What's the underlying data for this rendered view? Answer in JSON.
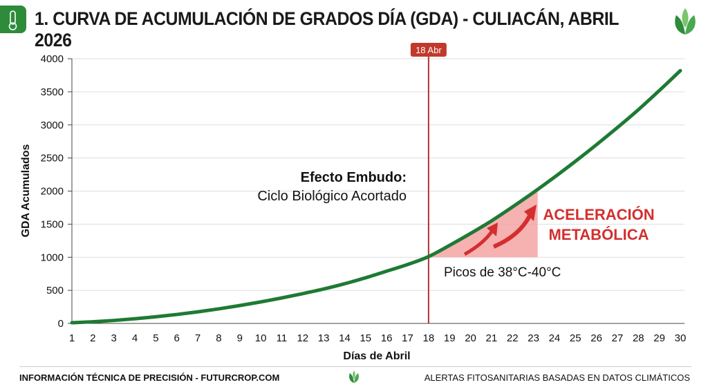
{
  "header": {
    "title": "1. CURVA DE ACUMULACIÓN DE GRADOS DÍA (GDA) - CULIACÁN, ABRIL 2026",
    "icon": "thermometer-icon",
    "logo": "leaf-logo"
  },
  "footer": {
    "left": "INFORMACIÓN TÉCNICA DE PRECISIÓN - FUTURCROP.COM",
    "right": "ALERTAS FITOSANITARIAS BASADAS EN DATOS CLIMÁTICOS",
    "icon": "leaf-logo"
  },
  "colors": {
    "curve": "#1e7a34",
    "marker": "#c0392b",
    "shade": "#f4a3a3",
    "accent": "#d32f2f",
    "brand": "#2e8b3a"
  },
  "chart_data": {
    "type": "line",
    "title": "",
    "xlabel": "Días de Abril",
    "ylabel": "GDA Acumulados",
    "xlim": [
      1,
      30
    ],
    "ylim": [
      0,
      4000
    ],
    "yticks": [
      0,
      500,
      1000,
      1500,
      2000,
      2500,
      3000,
      3500,
      4000
    ],
    "grid": "horizontal",
    "x": [
      1,
      2,
      3,
      4,
      5,
      6,
      7,
      8,
      9,
      10,
      11,
      12,
      13,
      14,
      15,
      16,
      17,
      18,
      19,
      20,
      21,
      22,
      23,
      24,
      25,
      26,
      27,
      28,
      29,
      30
    ],
    "values": [
      10,
      25,
      45,
      70,
      100,
      135,
      175,
      220,
      270,
      325,
      385,
      450,
      520,
      600,
      690,
      790,
      890,
      1010,
      1180,
      1360,
      1550,
      1760,
      1980,
      2210,
      2450,
      2700,
      2960,
      3230,
      3520,
      3820
    ],
    "marker": {
      "x": 18,
      "label": "18 Abr"
    },
    "shaded_region": {
      "x_start": 18,
      "x_end": 23.2,
      "y_base": 1000
    },
    "annotations": {
      "funnel_title": "Efecto Embudo:",
      "funnel_sub": "Ciclo Biológico Acortado",
      "accel_line1": "ACELERACIÓN",
      "accel_line2": "METABÓLICA",
      "peaks": "Picos de 38°C-40°C"
    }
  }
}
